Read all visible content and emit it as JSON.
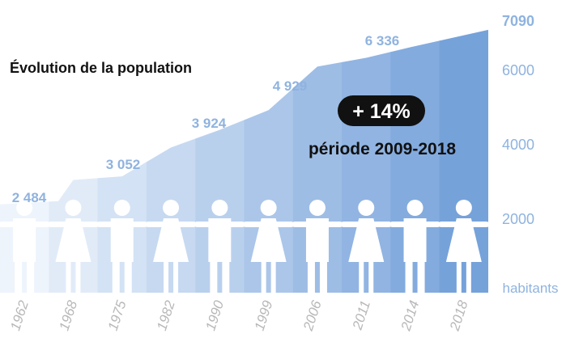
{
  "chart_data": {
    "type": "area",
    "title": "Évolution de la population",
    "categories": [
      "1962",
      "1968",
      "1975",
      "1982",
      "1990",
      "1999",
      "2006",
      "2011",
      "2014",
      "2018"
    ],
    "values": [
      2484,
      3052,
      3150,
      3924,
      4400,
      4929,
      6100,
      6336,
      6650,
      7090
    ],
    "data_labels": [
      {
        "year": "1962",
        "text": "2 484"
      },
      {
        "year": "1968",
        "text": "3 052"
      },
      {
        "year": "1982",
        "text": "3 924"
      },
      {
        "year": "1999",
        "text": "4 929"
      },
      {
        "year": "2011",
        "text": "6 336"
      }
    ],
    "y_axis": {
      "ticks": [
        2000,
        4000,
        6000
      ],
      "tick_labels": [
        "2000",
        "4000",
        "6000"
      ],
      "top_value": 7090,
      "top_label": "7090",
      "unit": "habitants",
      "position": "right",
      "range": [
        0,
        7300
      ]
    },
    "grid": false,
    "legend": "none",
    "colors": {
      "area_light": "#eef4fc",
      "area_dark": "#7ea7dc",
      "labels": "#8fb3df",
      "years": "#b8b8b8",
      "badge": "#111111"
    },
    "annotation": {
      "badge": "+ 14%",
      "period": "période 2009-2018"
    },
    "figures": [
      "man",
      "woman",
      "man",
      "woman",
      "man",
      "woman",
      "man",
      "woman",
      "man",
      "woman"
    ]
  }
}
